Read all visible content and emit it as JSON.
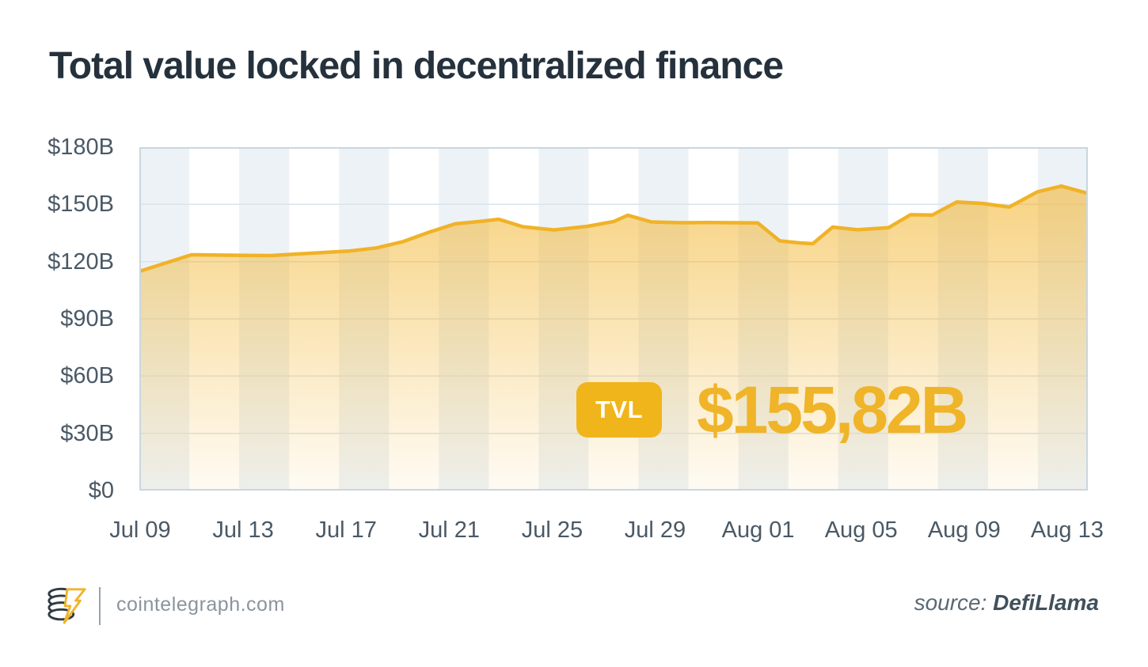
{
  "title": "Total value locked in decentralized finance",
  "chart_data": {
    "type": "area",
    "title": "Total value locked in decentralized finance",
    "y_unit": "billion USD",
    "ylim": [
      0,
      180
    ],
    "y_tick_labels": [
      "$180B",
      "$150B",
      "$120B",
      "$90B",
      "$60B",
      "$30B",
      "$0"
    ],
    "x_tick_labels": [
      "Jul 09",
      "Jul 13",
      "Jul 17",
      "Jul 21",
      "Jul 25",
      "Jul 29",
      "Aug 01",
      "Aug 05",
      "Aug 09",
      "Aug 13"
    ],
    "x_range": [
      "Jul 09",
      "Aug 14"
    ],
    "gridlines": true,
    "legend": "none",
    "series": [
      {
        "name": "TVL",
        "points": [
          {
            "x": 0.0,
            "date": "Jul 09",
            "value": 114.9
          },
          {
            "x": 0.055,
            "date": "Jul 11",
            "value": 123.6
          },
          {
            "x": 0.111,
            "date": "Jul 13",
            "value": 123.3
          },
          {
            "x": 0.139,
            "date": "Jul 14",
            "value": 123.2
          },
          {
            "x": 0.194,
            "date": "Jul 16",
            "value": 124.8
          },
          {
            "x": 0.222,
            "date": "Jul 17",
            "value": 125.6
          },
          {
            "x": 0.25,
            "date": "Jul 18",
            "value": 127.2
          },
          {
            "x": 0.278,
            "date": "Jul 19",
            "value": 130.5
          },
          {
            "x": 0.306,
            "date": "Jul 20",
            "value": 135.5
          },
          {
            "x": 0.333,
            "date": "Jul 21",
            "value": 139.8
          },
          {
            "x": 0.361,
            "date": "Jul 22",
            "value": 141.2
          },
          {
            "x": 0.379,
            "date": "Jul 23",
            "value": 142.2
          },
          {
            "x": 0.404,
            "date": "Jul 24",
            "value": 138.3
          },
          {
            "x": 0.437,
            "date": "Jul 25",
            "value": 136.6
          },
          {
            "x": 0.472,
            "date": "Jul 26",
            "value": 138.5
          },
          {
            "x": 0.5,
            "date": "Jul 27",
            "value": 141.0
          },
          {
            "x": 0.515,
            "date": "Jul 28",
            "value": 144.3
          },
          {
            "x": 0.54,
            "date": "Jul 29",
            "value": 140.8
          },
          {
            "x": 0.571,
            "date": "Jul 30",
            "value": 140.4
          },
          {
            "x": 0.604,
            "date": "Jul 31",
            "value": 140.5
          },
          {
            "x": 0.652,
            "date": "Aug 01",
            "value": 140.3
          },
          {
            "x": 0.675,
            "date": "Aug 02",
            "value": 130.9
          },
          {
            "x": 0.696,
            "date": "Aug 03",
            "value": 129.8
          },
          {
            "x": 0.71,
            "date": "Aug 04",
            "value": 129.4
          },
          {
            "x": 0.731,
            "date": "Aug 05",
            "value": 138.1
          },
          {
            "x": 0.757,
            "date": "Aug 06",
            "value": 136.7
          },
          {
            "x": 0.79,
            "date": "Aug 07",
            "value": 137.8
          },
          {
            "x": 0.813,
            "date": "Aug 08",
            "value": 144.6
          },
          {
            "x": 0.836,
            "date": "Aug 09",
            "value": 144.4
          },
          {
            "x": 0.862,
            "date": "Aug 10",
            "value": 151.3
          },
          {
            "x": 0.889,
            "date": "Aug 11",
            "value": 150.5
          },
          {
            "x": 0.917,
            "date": "Aug 12",
            "value": 148.6
          },
          {
            "x": 0.947,
            "date": "Aug 13",
            "value": 156.6
          },
          {
            "x": 0.972,
            "date": "Aug 13",
            "value": 159.6
          },
          {
            "x": 1.0,
            "date": "Aug 14",
            "value": 155.82
          }
        ]
      }
    ],
    "annotation": {
      "badge": "TVL",
      "value_label": "$155,82B",
      "value_numeric": 155.82
    },
    "colors": {
      "line": "#F0B227",
      "area": "#F2B226",
      "badge": "#F0B51A",
      "value_text": "#F0B429",
      "stripe": "#EDF2F6",
      "grid": "#DAE4EB",
      "plot_border": "#C9D7E0",
      "axis_text": "#4A5966",
      "title_text": "#25313C"
    }
  },
  "footer": {
    "brand": "cointelegraph.com",
    "source_prefix": "source:",
    "source_name": "DefiLlama"
  }
}
